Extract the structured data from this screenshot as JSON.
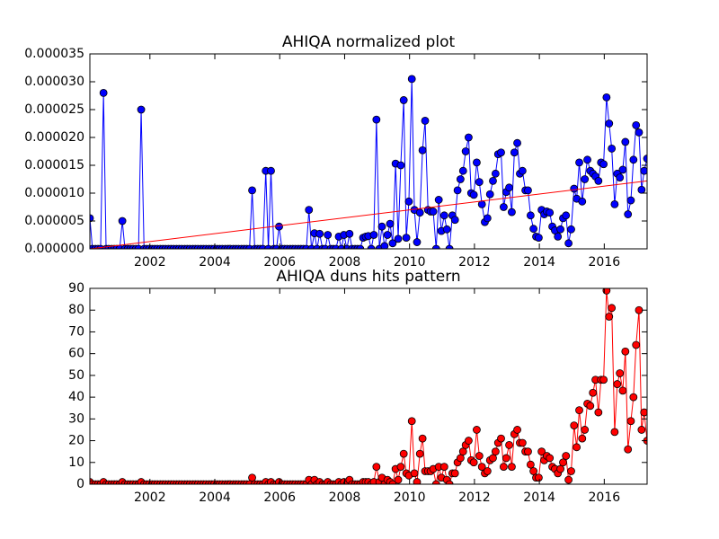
{
  "chart_data": [
    {
      "type": "line",
      "title": "AHIQA normalized plot",
      "x": [
        2000.15,
        2000.23,
        2000.32,
        2000.4,
        2000.48,
        2000.57,
        2000.65,
        2000.73,
        2000.82,
        2000.9,
        2000.98,
        2001.07,
        2001.15,
        2001.23,
        2001.32,
        2001.4,
        2001.48,
        2001.57,
        2001.65,
        2001.73,
        2001.82,
        2001.9,
        2001.98,
        2002.07,
        2002.15,
        2002.23,
        2002.32,
        2002.4,
        2002.48,
        2002.57,
        2002.65,
        2002.73,
        2002.82,
        2002.9,
        2002.98,
        2003.07,
        2003.15,
        2003.23,
        2003.32,
        2003.4,
        2003.48,
        2003.57,
        2003.65,
        2003.73,
        2003.82,
        2003.9,
        2003.98,
        2004.07,
        2004.15,
        2004.23,
        2004.32,
        2004.4,
        2004.48,
        2004.57,
        2004.65,
        2004.73,
        2004.82,
        2004.9,
        2004.98,
        2005.07,
        2005.15,
        2005.23,
        2005.32,
        2005.4,
        2005.48,
        2005.57,
        2005.65,
        2005.73,
        2005.82,
        2005.9,
        2005.98,
        2006.07,
        2006.15,
        2006.23,
        2006.32,
        2006.4,
        2006.48,
        2006.57,
        2006.65,
        2006.73,
        2006.82,
        2006.9,
        2006.98,
        2007.07,
        2007.15,
        2007.23,
        2007.32,
        2007.4,
        2007.48,
        2007.57,
        2007.65,
        2007.73,
        2007.82,
        2007.9,
        2007.98,
        2008.07,
        2008.15,
        2008.23,
        2008.32,
        2008.4,
        2008.48,
        2008.57,
        2008.65,
        2008.73,
        2008.82,
        2008.9,
        2008.98,
        2009.07,
        2009.15,
        2009.23,
        2009.32,
        2009.4,
        2009.48,
        2009.57,
        2009.65,
        2009.73,
        2009.82,
        2009.9,
        2009.98,
        2010.07,
        2010.15,
        2010.23,
        2010.32,
        2010.4,
        2010.48,
        2010.57,
        2010.65,
        2010.73,
        2010.82,
        2010.9,
        2010.98,
        2011.07,
        2011.15,
        2011.23,
        2011.32,
        2011.4,
        2011.48,
        2011.57,
        2011.65,
        2011.73,
        2011.82,
        2011.9,
        2011.98,
        2012.07,
        2012.15,
        2012.23,
        2012.32,
        2012.4,
        2012.48,
        2012.57,
        2012.65,
        2012.73,
        2012.82,
        2012.9,
        2012.98,
        2013.07,
        2013.15,
        2013.23,
        2013.32,
        2013.4,
        2013.48,
        2013.57,
        2013.65,
        2013.73,
        2013.82,
        2013.9,
        2013.98,
        2014.07,
        2014.15,
        2014.23,
        2014.32,
        2014.4,
        2014.48,
        2014.57,
        2014.65,
        2014.73,
        2014.82,
        2014.9,
        2014.98,
        2015.07,
        2015.15,
        2015.23,
        2015.32,
        2015.4,
        2015.48,
        2015.57,
        2015.65,
        2015.73,
        2015.82,
        2015.9,
        2015.98,
        2016.07,
        2016.15,
        2016.23,
        2016.32,
        2016.4,
        2016.48,
        2016.57,
        2016.65,
        2016.73,
        2016.82,
        2016.9,
        2016.98,
        2017.07,
        2017.15,
        2017.23,
        2017.32
      ],
      "series": [
        {
          "color": "#0000ff",
          "marker": "o",
          "values": [
            5.5e-06,
            0,
            0,
            0,
            0,
            2.8e-05,
            0,
            0,
            0,
            0,
            0,
            0,
            5e-06,
            0,
            0,
            0,
            0,
            0,
            0,
            2.5e-05,
            0,
            0,
            0,
            0,
            0,
            0,
            0,
            0,
            0,
            0,
            0,
            0,
            0,
            0,
            0,
            0,
            0,
            0,
            0,
            0,
            0,
            0,
            0,
            0,
            0,
            0,
            0,
            0,
            0,
            0,
            0,
            0,
            0,
            0,
            0,
            0,
            0,
            0,
            0,
            0,
            1.05e-05,
            0,
            0,
            0,
            0,
            1.4e-05,
            0,
            1.4e-05,
            0,
            0,
            4e-06,
            0,
            0,
            0,
            0,
            0,
            0,
            0,
            0,
            0,
            0,
            7e-06,
            0,
            2.8e-06,
            0,
            2.7e-06,
            0,
            0,
            2.5e-06,
            0,
            0,
            0,
            2.2e-06,
            0,
            2.5e-06,
            0,
            2.7e-06,
            0,
            0,
            0,
            0,
            2e-06,
            2.2e-06,
            2.3e-06,
            0,
            2.5e-06,
            2.32e-05,
            0,
            4e-06,
            5e-07,
            2.5e-06,
            4.5e-06,
            1e-06,
            1.53e-05,
            1.8e-06,
            1.5e-05,
            2.67e-05,
            2e-06,
            8.5e-06,
            3.05e-05,
            7e-06,
            1.2e-06,
            6.5e-06,
            1.77e-05,
            2.3e-05,
            7e-06,
            6.7e-06,
            6.7e-06,
            0,
            8.8e-06,
            3.2e-06,
            6e-06,
            3.5e-06,
            0,
            6e-06,
            5.2e-06,
            1.05e-05,
            1.25e-05,
            1.4e-05,
            1.75e-05,
            2e-05,
            1e-05,
            9.7e-06,
            1.55e-05,
            1.2e-05,
            8e-06,
            4.8e-06,
            5.5e-06,
            9.8e-06,
            1.22e-05,
            1.35e-05,
            1.7e-05,
            1.73e-05,
            7.5e-06,
            1.02e-05,
            1.1e-05,
            6.6e-06,
            1.73e-05,
            1.9e-05,
            1.35e-05,
            1.4e-05,
            1.05e-05,
            1.05e-05,
            6e-06,
            3.6e-06,
            2.2e-06,
            2e-06,
            7e-06,
            6.2e-06,
            6.7e-06,
            6.5e-06,
            4e-06,
            3.3e-06,
            2.2e-06,
            3.5e-06,
            5.5e-06,
            6e-06,
            1e-06,
            3.5e-06,
            1.08e-05,
            9e-06,
            1.55e-05,
            8.5e-06,
            1.25e-05,
            1.6e-05,
            1.4e-05,
            1.35e-05,
            1.3e-05,
            1.22e-05,
            1.55e-05,
            1.52e-05,
            2.72e-05,
            2.25e-05,
            1.8e-05,
            8e-06,
            1.35e-05,
            1.28e-05,
            1.42e-05,
            1.92e-05,
            6.2e-06,
            8.7e-06,
            1.6e-05,
            2.22e-05,
            2.09e-05,
            1.06e-05,
            1.4e-05,
            1.62e-05
          ]
        },
        {
          "color": "#ff0000",
          "x": [
            2000.15,
            2017.32
          ],
          "values": [
            0,
            1.22e-05
          ]
        }
      ],
      "xlim": [
        2000.15,
        2017.32
      ],
      "xticks": [
        2002,
        2004,
        2006,
        2008,
        2010,
        2012,
        2014,
        2016
      ],
      "ylim": [
        0,
        3.5e-05
      ],
      "yticks": [
        {
          "value": 0,
          "label": "0.000000"
        },
        {
          "value": 5e-06,
          "label": "0.000005"
        },
        {
          "value": 1e-05,
          "label": "0.000010"
        },
        {
          "value": 1.5e-05,
          "label": "0.000015"
        },
        {
          "value": 2e-05,
          "label": "0.000020"
        },
        {
          "value": 2.5e-05,
          "label": "0.000025"
        },
        {
          "value": 3e-05,
          "label": "0.000030"
        },
        {
          "value": 3.5e-05,
          "label": "0.000035"
        }
      ]
    },
    {
      "type": "line",
      "title": "AHIQA duns hits pattern",
      "x": [
        2000.15,
        2000.23,
        2000.32,
        2000.4,
        2000.48,
        2000.57,
        2000.65,
        2000.73,
        2000.82,
        2000.9,
        2000.98,
        2001.07,
        2001.15,
        2001.23,
        2001.32,
        2001.4,
        2001.48,
        2001.57,
        2001.65,
        2001.73,
        2001.82,
        2001.9,
        2001.98,
        2002.07,
        2002.15,
        2002.23,
        2002.32,
        2002.4,
        2002.48,
        2002.57,
        2002.65,
        2002.73,
        2002.82,
        2002.9,
        2002.98,
        2003.07,
        2003.15,
        2003.23,
        2003.32,
        2003.4,
        2003.48,
        2003.57,
        2003.65,
        2003.73,
        2003.82,
        2003.9,
        2003.98,
        2004.07,
        2004.15,
        2004.23,
        2004.32,
        2004.4,
        2004.48,
        2004.57,
        2004.65,
        2004.73,
        2004.82,
        2004.9,
        2004.98,
        2005.07,
        2005.15,
        2005.23,
        2005.32,
        2005.4,
        2005.48,
        2005.57,
        2005.65,
        2005.73,
        2005.82,
        2005.9,
        2005.98,
        2006.07,
        2006.15,
        2006.23,
        2006.32,
        2006.4,
        2006.48,
        2006.57,
        2006.65,
        2006.73,
        2006.82,
        2006.9,
        2006.98,
        2007.07,
        2007.15,
        2007.23,
        2007.32,
        2007.4,
        2007.48,
        2007.57,
        2007.65,
        2007.73,
        2007.82,
        2007.9,
        2007.98,
        2008.07,
        2008.15,
        2008.23,
        2008.32,
        2008.4,
        2008.48,
        2008.57,
        2008.65,
        2008.73,
        2008.82,
        2008.9,
        2008.98,
        2009.07,
        2009.15,
        2009.23,
        2009.32,
        2009.4,
        2009.48,
        2009.57,
        2009.65,
        2009.73,
        2009.82,
        2009.9,
        2009.98,
        2010.07,
        2010.15,
        2010.23,
        2010.32,
        2010.4,
        2010.48,
        2010.57,
        2010.65,
        2010.73,
        2010.82,
        2010.9,
        2010.98,
        2011.07,
        2011.15,
        2011.23,
        2011.32,
        2011.4,
        2011.48,
        2011.57,
        2011.65,
        2011.73,
        2011.82,
        2011.9,
        2011.98,
        2012.07,
        2012.15,
        2012.23,
        2012.32,
        2012.4,
        2012.48,
        2012.57,
        2012.65,
        2012.73,
        2012.82,
        2012.9,
        2012.98,
        2013.07,
        2013.15,
        2013.23,
        2013.32,
        2013.4,
        2013.48,
        2013.57,
        2013.65,
        2013.73,
        2013.82,
        2013.9,
        2013.98,
        2014.07,
        2014.15,
        2014.23,
        2014.32,
        2014.4,
        2014.48,
        2014.57,
        2014.65,
        2014.73,
        2014.82,
        2014.9,
        2014.98,
        2015.07,
        2015.15,
        2015.23,
        2015.32,
        2015.4,
        2015.48,
        2015.57,
        2015.65,
        2015.73,
        2015.82,
        2015.9,
        2015.98,
        2016.07,
        2016.15,
        2016.23,
        2016.32,
        2016.4,
        2016.48,
        2016.57,
        2016.65,
        2016.73,
        2016.82,
        2016.9,
        2016.98,
        2017.07,
        2017.15,
        2017.23,
        2017.32
      ],
      "series": [
        {
          "color": "#ff0000",
          "marker": "o",
          "values": [
            1,
            0,
            0,
            0,
            0,
            1,
            0,
            0,
            0,
            0,
            0,
            0,
            1,
            0,
            0,
            0,
            0,
            0,
            0,
            1,
            0,
            0,
            0,
            0,
            0,
            0,
            0,
            0,
            0,
            0,
            0,
            0,
            0,
            0,
            0,
            0,
            0,
            0,
            0,
            0,
            0,
            0,
            0,
            0,
            0,
            0,
            0,
            0,
            0,
            0,
            0,
            0,
            0,
            0,
            0,
            0,
            0,
            0,
            0,
            0,
            3,
            0,
            0,
            0,
            0,
            1,
            0,
            1,
            0,
            0,
            1,
            0,
            0,
            0,
            0,
            0,
            0,
            0,
            0,
            0,
            0,
            2,
            0,
            2,
            0,
            1,
            0,
            0,
            1,
            0,
            0,
            0,
            1,
            0,
            1,
            0,
            2,
            0,
            0,
            0,
            0,
            1,
            1,
            1,
            0,
            1,
            8,
            1,
            3,
            0,
            2,
            1,
            0,
            7,
            2,
            8,
            14,
            5,
            4,
            29,
            5,
            1,
            14,
            21,
            6,
            6,
            6,
            7,
            0,
            8,
            3,
            8,
            2,
            0,
            5,
            5,
            10,
            12,
            15,
            18,
            20,
            11,
            10,
            25,
            13,
            8,
            5,
            6,
            11,
            12,
            15,
            19,
            21,
            8,
            12,
            18,
            8,
            23,
            25,
            19,
            19,
            15,
            15,
            9,
            6,
            3,
            3,
            15,
            11,
            13,
            12,
            8,
            7,
            5,
            7,
            10,
            13,
            2,
            6,
            27,
            17,
            34,
            21,
            25,
            37,
            36,
            42,
            48,
            33,
            48,
            48,
            89,
            77,
            81,
            24,
            46,
            51,
            43,
            61,
            16,
            29,
            40,
            64,
            80,
            25,
            33,
            20
          ]
        }
      ],
      "xlim": [
        2000.15,
        2017.32
      ],
      "xticks": [
        2002,
        2004,
        2006,
        2008,
        2010,
        2012,
        2014,
        2016
      ],
      "ylim": [
        0,
        90
      ],
      "yticks": [
        0,
        10,
        20,
        30,
        40,
        50,
        60,
        70,
        80,
        90
      ]
    }
  ]
}
